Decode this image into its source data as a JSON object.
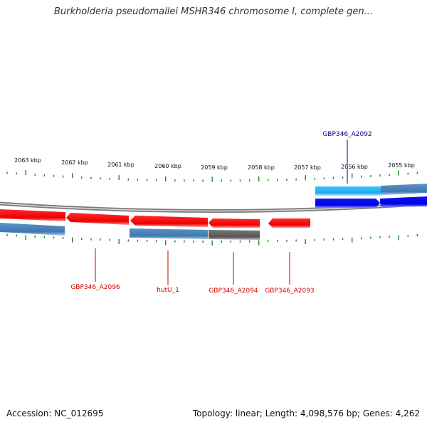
{
  "title": "Burkholderia pseudomallei MSHR346 chromosome I, complete gen...",
  "footer": {
    "accession": "Accession: NC_012695",
    "topology": "Topology: linear; Length: 4,098,576 bp; Genes: 4,262"
  },
  "colors": {
    "minus_gene": "#ff0000",
    "plus_gene": "#0000ee",
    "cds_blue": "#4a86be",
    "cds_light": "#25b4f0",
    "cds_gray": "#666666",
    "tick": "#1a8a1a",
    "label_red": "#cc0000",
    "label_blue": "#000099"
  },
  "scale_labels": [
    "2063 kbp",
    "2062 kbp",
    "2061 kbp",
    "2060 kbp",
    "2059 kbp",
    "2058 kbp",
    "2057 kbp",
    "2056 kbp",
    "2055 kbp"
  ],
  "gene_labels": [
    {
      "text": "GBP346_A2092",
      "strand": "plus"
    },
    {
      "text": "GBP346_A2096",
      "strand": "minus"
    },
    {
      "text": "hutU_1",
      "strand": "minus"
    },
    {
      "text": "GBP346_A2094",
      "strand": "minus"
    },
    {
      "text": "GBP346_A2093",
      "strand": "minus"
    }
  ]
}
